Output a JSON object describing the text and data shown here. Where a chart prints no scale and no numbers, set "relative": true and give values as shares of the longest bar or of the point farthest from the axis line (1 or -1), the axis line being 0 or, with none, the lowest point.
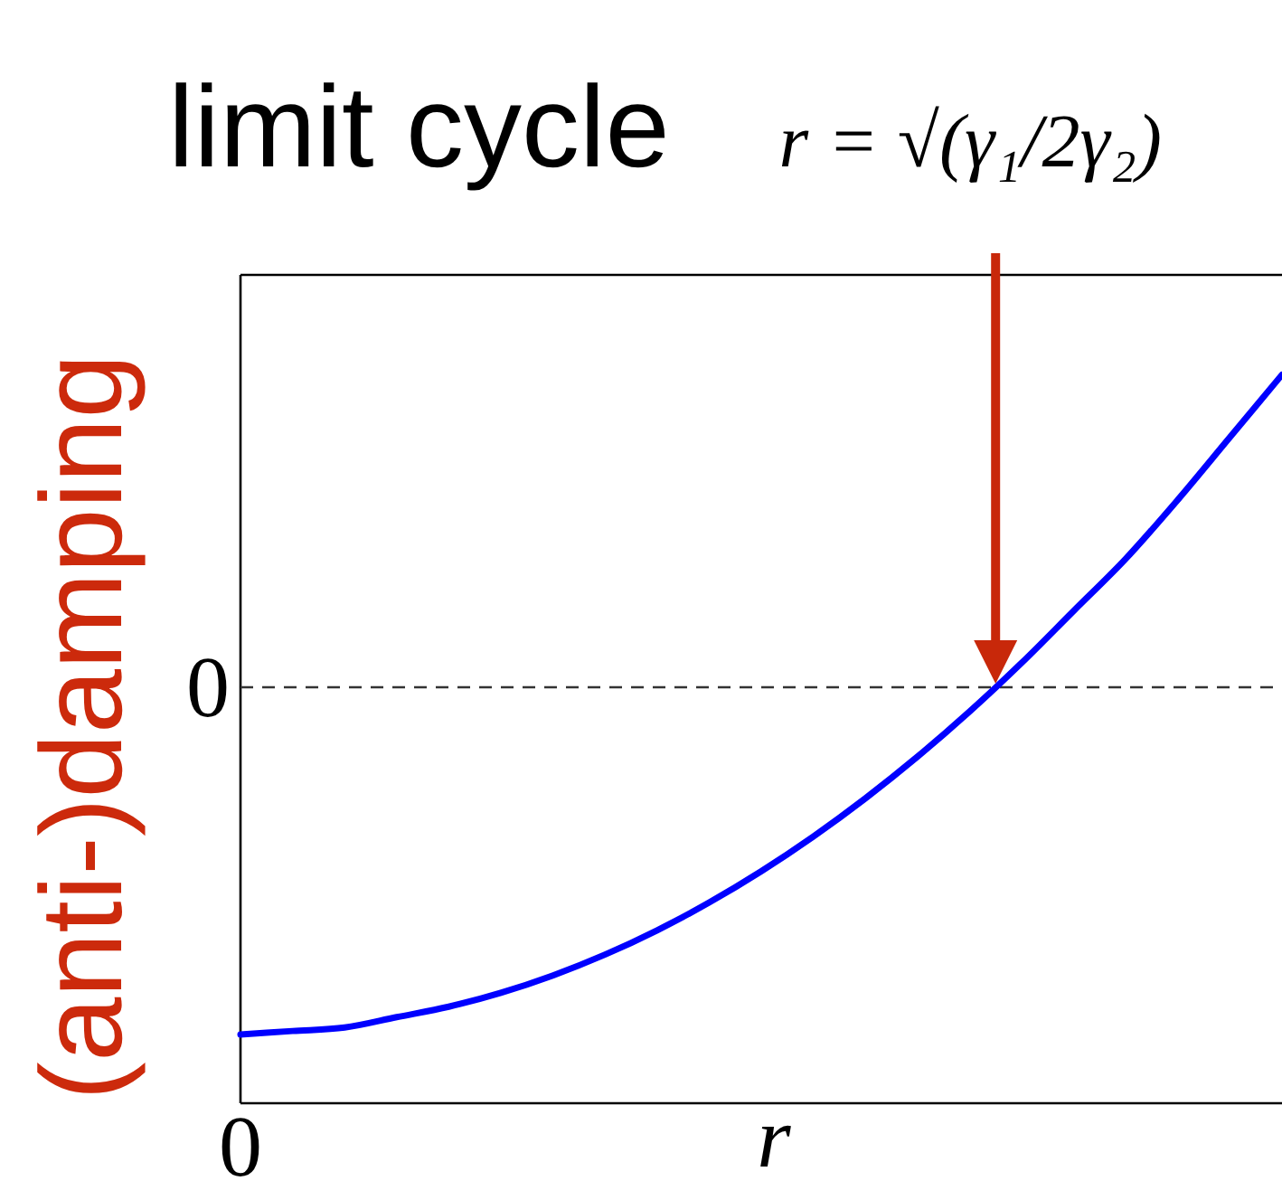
{
  "chart_data": {
    "type": "line",
    "title": "limit cycle",
    "xlabel": "r",
    "ylabel": "(anti-)damping",
    "relative": true,
    "categories": [
      null,
      null,
      null,
      null,
      null,
      null,
      null,
      null,
      null,
      null,
      null,
      null,
      null,
      null,
      null,
      null,
      null,
      null,
      null,
      null,
      null
    ],
    "series": [
      {
        "color": "#0000ff",
        "values": [
          -1,
          -0.99,
          -0.98,
          -0.95,
          -0.92,
          -0.88,
          -0.83,
          -0.77,
          -0.7,
          -0.62,
          -0.53,
          -0.43,
          -0.32,
          -0.2,
          -0.07,
          0.07,
          0.22,
          0.37,
          0.54,
          0.72,
          0.9
        ]
      }
    ],
    "ref_lines": [
      {
        "axis": "y",
        "value": 0,
        "label": "0",
        "color": "#333333",
        "line_style": "dashed"
      }
    ],
    "annotations": [
      "r = √(γ₁/2γ₂)",
      "0"
    ]
  }
}
